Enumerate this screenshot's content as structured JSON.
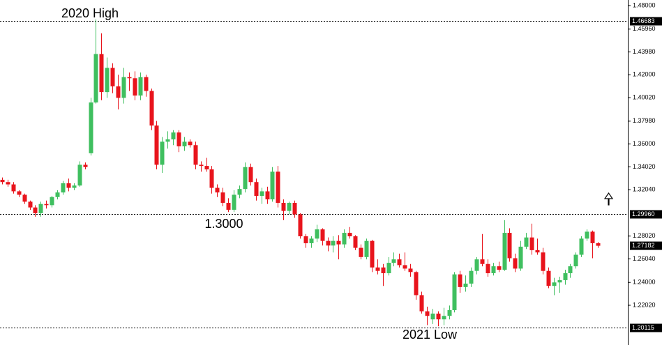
{
  "chart_data": {
    "type": "candlestick",
    "up_color": "#3fbf5f",
    "down_color": "#e8141c",
    "ylim": [
      1.18577,
      1.48483
    ],
    "yticks": [
      {
        "value": 1.48,
        "label": "1.48000"
      },
      {
        "value": 1.4596,
        "label": "1.45960"
      },
      {
        "value": 1.4398,
        "label": "1.43980"
      },
      {
        "value": 1.42,
        "label": "1.42000"
      },
      {
        "value": 1.4002,
        "label": "1.40020"
      },
      {
        "value": 1.3798,
        "label": "1.37980"
      },
      {
        "value": 1.36,
        "label": "1.36000"
      },
      {
        "value": 1.3402,
        "label": "1.34020"
      },
      {
        "value": 1.3204,
        "label": "1.32040"
      },
      {
        "value": 1.2802,
        "label": "1.28020"
      },
      {
        "value": 1.2604,
        "label": "1.26040"
      },
      {
        "value": 1.24,
        "label": "1.24000"
      },
      {
        "value": 1.2202,
        "label": "1.22020"
      }
    ],
    "levels": [
      {
        "value": 1.46683,
        "label": "1.46683"
      },
      {
        "value": 1.2996,
        "label": "1.29960"
      },
      {
        "value": 1.20115,
        "label": "1.20115"
      }
    ],
    "last_price": {
      "value": 1.27182,
      "label": "1.27182"
    },
    "annotations": [
      "2020 High",
      "1.3000",
      "2021 Low"
    ],
    "open": [
      1.329,
      1.327,
      1.325,
      1.319,
      1.316,
      1.31,
      1.305,
      1.3,
      1.308,
      1.307,
      1.314,
      1.318,
      1.326,
      1.322,
      1.324,
      1.342,
      1.352,
      1.396,
      1.438,
      1.405,
      1.426,
      1.41,
      1.4,
      1.418,
      1.417,
      1.402,
      1.418,
      1.406,
      1.376,
      1.342,
      1.362,
      1.364,
      1.37,
      1.358,
      1.362,
      1.359,
      1.342,
      1.341,
      1.338,
      1.322,
      1.318,
      1.309,
      1.303,
      1.316,
      1.321,
      1.34,
      1.327,
      1.315,
      1.319,
      1.312,
      1.336,
      1.309,
      1.302,
      1.309,
      1.299,
      1.28,
      1.274,
      1.278,
      1.286,
      1.276,
      1.272,
      1.276,
      1.273,
      1.283,
      1.28,
      1.27,
      1.262,
      1.276,
      1.253,
      1.253,
      1.248,
      1.257,
      1.26,
      1.255,
      1.252,
      1.249,
      1.229,
      1.215,
      1.208,
      1.213,
      1.208,
      1.211,
      1.216,
      1.247,
      1.236,
      1.239,
      1.25,
      1.26,
      1.256,
      1.248,
      1.254,
      1.251,
      1.283,
      1.261,
      1.252,
      1.271,
      1.279,
      1.268,
      1.266,
      1.25,
      1.237,
      1.24,
      1.242,
      1.248,
      1.254,
      1.264,
      1.278,
      1.284,
      1.274
    ],
    "high": [
      1.331,
      1.329,
      1.327,
      1.32,
      1.317,
      1.311,
      1.307,
      1.31,
      1.311,
      1.315,
      1.32,
      1.328,
      1.33,
      1.326,
      1.345,
      1.344,
      1.4,
      1.468,
      1.456,
      1.435,
      1.43,
      1.42,
      1.426,
      1.422,
      1.423,
      1.422,
      1.42,
      1.408,
      1.38,
      1.366,
      1.371,
      1.372,
      1.372,
      1.366,
      1.364,
      1.362,
      1.345,
      1.348,
      1.341,
      1.325,
      1.322,
      1.313,
      1.32,
      1.324,
      1.344,
      1.343,
      1.33,
      1.322,
      1.323,
      1.34,
      1.341,
      1.312,
      1.31,
      1.311,
      1.3,
      1.282,
      1.28,
      1.29,
      1.287,
      1.279,
      1.28,
      1.281,
      1.286,
      1.288,
      1.281,
      1.273,
      1.278,
      1.277,
      1.26,
      1.256,
      1.262,
      1.266,
      1.265,
      1.266,
      1.256,
      1.25,
      1.232,
      1.219,
      1.217,
      1.215,
      1.218,
      1.22,
      1.249,
      1.25,
      1.246,
      1.253,
      1.262,
      1.282,
      1.26,
      1.257,
      1.258,
      1.294,
      1.287,
      1.265,
      1.276,
      1.283,
      1.291,
      1.278,
      1.27,
      1.253,
      1.244,
      1.245,
      1.251,
      1.256,
      1.266,
      1.28,
      1.286,
      1.285,
      1.275
    ],
    "low": [
      1.325,
      1.323,
      1.317,
      1.314,
      1.308,
      1.303,
      1.297,
      1.297,
      1.304,
      1.305,
      1.312,
      1.316,
      1.319,
      1.32,
      1.323,
      1.338,
      1.35,
      1.395,
      1.398,
      1.4,
      1.404,
      1.39,
      1.395,
      1.406,
      1.398,
      1.398,
      1.401,
      1.372,
      1.338,
      1.335,
      1.356,
      1.359,
      1.353,
      1.354,
      1.357,
      1.338,
      1.336,
      1.336,
      1.317,
      1.314,
      1.306,
      1.301,
      1.301,
      1.313,
      1.318,
      1.324,
      1.311,
      1.308,
      1.308,
      1.31,
      1.305,
      1.294,
      1.299,
      1.296,
      1.278,
      1.27,
      1.27,
      1.275,
      1.272,
      1.267,
      1.266,
      1.26,
      1.27,
      1.278,
      1.268,
      1.26,
      1.26,
      1.249,
      1.247,
      1.237,
      1.246,
      1.254,
      1.253,
      1.25,
      1.245,
      1.225,
      1.213,
      1.203,
      1.204,
      1.202,
      1.203,
      1.208,
      1.214,
      1.231,
      1.232,
      1.236,
      1.247,
      1.254,
      1.245,
      1.246,
      1.249,
      1.25,
      1.258,
      1.249,
      1.25,
      1.269,
      1.264,
      1.264,
      1.247,
      1.235,
      1.229,
      1.231,
      1.238,
      1.244,
      1.252,
      1.262,
      1.276,
      1.261,
      1.27
    ],
    "close": [
      1.327,
      1.325,
      1.319,
      1.316,
      1.31,
      1.305,
      1.3,
      1.308,
      1.307,
      1.314,
      1.318,
      1.326,
      1.322,
      1.324,
      1.342,
      1.34,
      1.396,
      1.438,
      1.405,
      1.426,
      1.41,
      1.4,
      1.418,
      1.417,
      1.402,
      1.418,
      1.406,
      1.376,
      1.342,
      1.362,
      1.364,
      1.37,
      1.358,
      1.362,
      1.359,
      1.342,
      1.341,
      1.338,
      1.322,
      1.318,
      1.309,
      1.303,
      1.316,
      1.321,
      1.34,
      1.327,
      1.315,
      1.319,
      1.312,
      1.336,
      1.309,
      1.302,
      1.309,
      1.299,
      1.28,
      1.274,
      1.278,
      1.286,
      1.276,
      1.272,
      1.276,
      1.273,
      1.283,
      1.28,
      1.27,
      1.262,
      1.276,
      1.253,
      1.25,
      1.248,
      1.257,
      1.26,
      1.255,
      1.252,
      1.249,
      1.229,
      1.215,
      1.211,
      1.213,
      1.208,
      1.211,
      1.216,
      1.247,
      1.236,
      1.239,
      1.25,
      1.26,
      1.256,
      1.248,
      1.254,
      1.251,
      1.283,
      1.261,
      1.252,
      1.271,
      1.279,
      1.268,
      1.266,
      1.25,
      1.237,
      1.24,
      1.242,
      1.248,
      1.254,
      1.264,
      1.278,
      1.284,
      1.274,
      1.2718
    ]
  }
}
